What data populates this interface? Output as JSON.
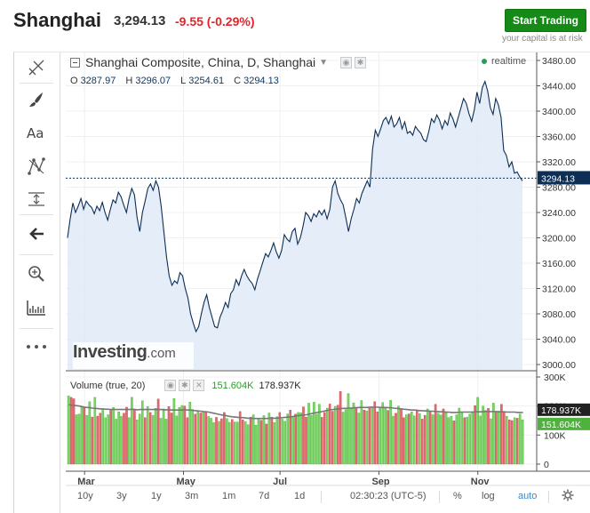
{
  "header": {
    "symbol": "Shanghai",
    "price": "3,294.13",
    "change": "-9.55 (-0.29%)",
    "trade_button": "Start Trading",
    "risk_note": "your capital is at risk"
  },
  "legend": {
    "title": "Shanghai Composite, China, D, Shanghai",
    "realtime": "realtime"
  },
  "ohlc": {
    "o_label": "O",
    "o": "3287.97",
    "h_label": "H",
    "h": "3296.07",
    "l_label": "L",
    "l": "3254.61",
    "c_label": "C",
    "c": "3294.13"
  },
  "volume_legend": {
    "label": "Volume (true, 20)",
    "volume": "151.604K",
    "ma": "178.937K"
  },
  "logo": {
    "brand": "Investing",
    "domain": ".com"
  },
  "bottom_bar": {
    "ranges": [
      "10y",
      "3y",
      "1y",
      "3m",
      "1m",
      "7d",
      "1d"
    ],
    "time": "02:30:23 (UTC-5)",
    "percent": "%",
    "log": "log",
    "auto": "auto"
  },
  "toolbar_icons": [
    "crosshair-icon",
    "brush-icon",
    "text-icon",
    "pattern-icon",
    "measure-icon",
    "back-arrow-icon",
    "zoom-icon",
    "ruler-icon",
    "more-icon"
  ],
  "colors": {
    "line": "#0d2e55",
    "area": "#dfeaf7",
    "up": "#7bd666",
    "down": "#e26b6f",
    "negative": "#e0262b",
    "accent": "#168a16"
  },
  "chart_data": [
    {
      "type": "area",
      "ylim": [
        3000,
        3480
      ],
      "y_ticks": [
        "3480.00",
        "3440.00",
        "3400.00",
        "3360.00",
        "3320.00",
        "3280.00",
        "3240.00",
        "3200.00",
        "3160.00",
        "3120.00",
        "3080.00",
        "3040.00",
        "3000.00"
      ],
      "x_ticks": [
        "Mar",
        "May",
        "Jul",
        "Sep",
        "Nov"
      ],
      "last_value": "3294.13",
      "values": [
        3200,
        3230,
        3255,
        3240,
        3250,
        3262,
        3245,
        3258,
        3252,
        3248,
        3238,
        3250,
        3243,
        3256,
        3240,
        3228,
        3245,
        3260,
        3255,
        3272,
        3265,
        3252,
        3240,
        3262,
        3278,
        3268,
        3232,
        3210,
        3240,
        3258,
        3278,
        3285,
        3275,
        3290,
        3280,
        3250,
        3210,
        3170,
        3140,
        3125,
        3132,
        3128,
        3145,
        3140,
        3120,
        3105,
        3080,
        3065,
        3052,
        3060,
        3080,
        3098,
        3110,
        3090,
        3075,
        3060,
        3058,
        3075,
        3085,
        3098,
        3090,
        3112,
        3118,
        3134,
        3125,
        3140,
        3150,
        3140,
        3133,
        3128,
        3118,
        3135,
        3148,
        3162,
        3175,
        3170,
        3180,
        3192,
        3178,
        3168,
        3180,
        3205,
        3198,
        3194,
        3210,
        3215,
        3190,
        3200,
        3218,
        3240,
        3235,
        3226,
        3238,
        3233,
        3243,
        3236,
        3244,
        3230,
        3245,
        3280,
        3290,
        3270,
        3260,
        3252,
        3232,
        3210,
        3230,
        3245,
        3262,
        3255,
        3270,
        3280,
        3290,
        3280,
        3340,
        3370,
        3360,
        3372,
        3385,
        3390,
        3380,
        3392,
        3375,
        3380,
        3390,
        3372,
        3383,
        3365,
        3368,
        3362,
        3376,
        3370,
        3365,
        3355,
        3352,
        3368,
        3388,
        3382,
        3394,
        3386,
        3372,
        3385,
        3378,
        3397,
        3388,
        3375,
        3390,
        3405,
        3420,
        3412,
        3396,
        3384,
        3402,
        3430,
        3412,
        3437,
        3447,
        3432,
        3405,
        3395,
        3420,
        3410,
        3390,
        3338,
        3330,
        3312,
        3320,
        3302,
        3304,
        3296,
        3290
      ]
    },
    {
      "type": "bar",
      "title": "Volume (true, 20)",
      "ylim": [
        0,
        300
      ],
      "y_ticks": [
        "300K",
        "200K",
        "100K",
        "0"
      ],
      "last_volume": "151.604K",
      "last_ma": "178.937K",
      "values": [
        235,
        230,
        225,
        170,
        172,
        198,
        195,
        168,
        215,
        162,
        230,
        165,
        175,
        190,
        160,
        170,
        185,
        195,
        155,
        180,
        165,
        175,
        196,
        160,
        230,
        188,
        152,
        172,
        218,
        160,
        198,
        178,
        168,
        192,
        224,
        158,
        190,
        155,
        198,
        176,
        226,
        166,
        195,
        202,
        200,
        160,
        214,
        188,
        172,
        184,
        176,
        178,
        178,
        164,
        158,
        143,
        161,
        147,
        156,
        178,
        157,
        144,
        154,
        145,
        145,
        181,
        152,
        146,
        136,
        162,
        170,
        134,
        158,
        151,
        167,
        138,
        176,
        162,
        143,
        163,
        178,
        155,
        148,
        173,
        186,
        160,
        172,
        178,
        177,
        197,
        162,
        210,
        168,
        213,
        172,
        206,
        161,
        178,
        193,
        207,
        182,
        199,
        203,
        250,
        179,
        188,
        243,
        191,
        211,
        195,
        176,
        219,
        186,
        183,
        195,
        197,
        215,
        180,
        195,
        212,
        192,
        185,
        220,
        165,
        175,
        200,
        190,
        160,
        170,
        173,
        180,
        166,
        187,
        174,
        155,
        168,
        190,
        183,
        170,
        206,
        175,
        169,
        190,
        177,
        160,
        165,
        149,
        170,
        193,
        180,
        160,
        162,
        172,
        181,
        201,
        230,
        166,
        200,
        185,
        192,
        156,
        210,
        178,
        182,
        206,
        180,
        165,
        152,
        150,
        160,
        158,
        172,
        152
      ],
      "colors": [
        0,
        1,
        1,
        0,
        0,
        0,
        1,
        0,
        0,
        1,
        0,
        1,
        1,
        0,
        0,
        0,
        1,
        0,
        0,
        0,
        0,
        1,
        1,
        0,
        0,
        1,
        0,
        0,
        0,
        1,
        0,
        1,
        0,
        0,
        1,
        0,
        0,
        0,
        1,
        1,
        0,
        0,
        0,
        0,
        1,
        1,
        0,
        0,
        1,
        0,
        1,
        0,
        1,
        0,
        0,
        0,
        1,
        0,
        1,
        1,
        0,
        0,
        1,
        0,
        0,
        1,
        1,
        0,
        0,
        1,
        0,
        0,
        0,
        1,
        0,
        1,
        0,
        1,
        0,
        0,
        1,
        0,
        0,
        0,
        1,
        0,
        1,
        0,
        0,
        1,
        1,
        0,
        0,
        0,
        0,
        0,
        1,
        1,
        0,
        1,
        1,
        0,
        1,
        1,
        0,
        0,
        0,
        0,
        0,
        1,
        0,
        0,
        1,
        0,
        1,
        0,
        1,
        1,
        0,
        0,
        0,
        1,
        0,
        0,
        1,
        0,
        1,
        1,
        0,
        1,
        0,
        0,
        1,
        0,
        1,
        1,
        0,
        1,
        0,
        1,
        0,
        0,
        1,
        0,
        0,
        0,
        1,
        0,
        0,
        0,
        1,
        0,
        0,
        0,
        1,
        0,
        0,
        0,
        0,
        1,
        0,
        0,
        1,
        0,
        1,
        1,
        0,
        1,
        1,
        0,
        1,
        0,
        0
      ],
      "ma": [
        205,
        203,
        202,
        201,
        200,
        198,
        196,
        195,
        194,
        193,
        192,
        191,
        190,
        190,
        189,
        189,
        188,
        188,
        188,
        188,
        188,
        188,
        188,
        188,
        189,
        188,
        187,
        188,
        188,
        188,
        188,
        188,
        188,
        188,
        188,
        188,
        187,
        187,
        187,
        186,
        186,
        186,
        186,
        186,
        187,
        186,
        186,
        185,
        184,
        183,
        182,
        181,
        180,
        179,
        177,
        175,
        173,
        171,
        169,
        168,
        166,
        164,
        163,
        162,
        161,
        160,
        160,
        159,
        158,
        158,
        157,
        157,
        157,
        157,
        157,
        157,
        158,
        158,
        158,
        159,
        159,
        160,
        161,
        162,
        163,
        164,
        166,
        167,
        168,
        169,
        170,
        172,
        174,
        176,
        178,
        179,
        181,
        183,
        185,
        187,
        188,
        189,
        190,
        191,
        192,
        192,
        193,
        193,
        194,
        194,
        195,
        195,
        195,
        195,
        196,
        196,
        196,
        196,
        195,
        195,
        195,
        194,
        194,
        193,
        192,
        191,
        190,
        189,
        188,
        187,
        186,
        186,
        185,
        184,
        184,
        183,
        183,
        182,
        182,
        181,
        181,
        180,
        180,
        179,
        179,
        178,
        178,
        178,
        179,
        179,
        179,
        179,
        179,
        179,
        180,
        180,
        180,
        181,
        181,
        181,
        181,
        181,
        181,
        180,
        180,
        180,
        179,
        179,
        179,
        179,
        178,
        178,
        178
      ]
    }
  ]
}
